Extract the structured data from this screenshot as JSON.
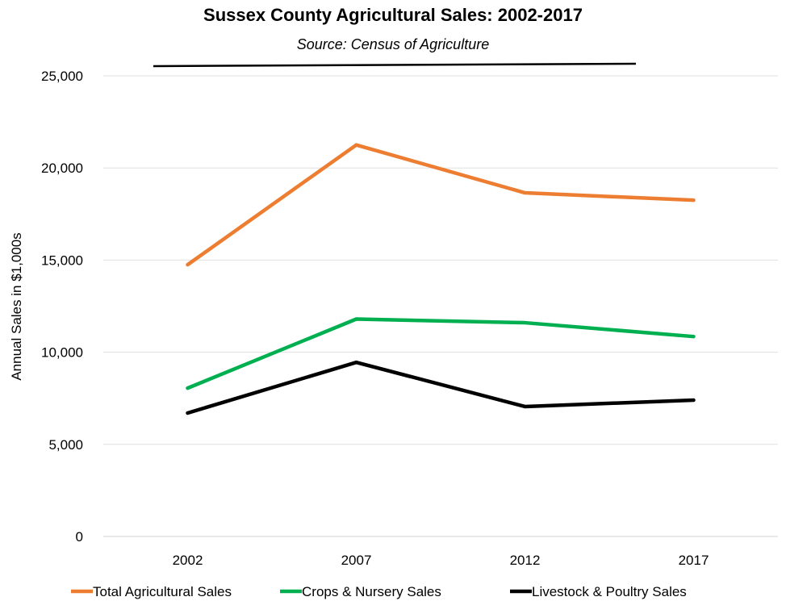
{
  "chart_data": {
    "type": "line",
    "title": "Sussex County Agricultural Sales: 2002-2017",
    "subtitle": "Source: Census of Agriculture",
    "xlabel": "",
    "ylabel": "Annual Sales in $1,000s",
    "categories": [
      "2002",
      "2007",
      "2012",
      "2017"
    ],
    "ylim": [
      0,
      25000
    ],
    "yticks": [
      0,
      5000,
      10000,
      15000,
      20000,
      25000
    ],
    "ytick_labels": [
      "0",
      "5,000",
      "10,000",
      "15,000",
      "20,000",
      "25,000"
    ],
    "grid": "horizontal",
    "legend_position": "bottom",
    "series": [
      {
        "name": "Total Agricultural Sales",
        "color": "#ED7D31",
        "values": [
          14750,
          21250,
          18650,
          18250
        ]
      },
      {
        "name": "Crops & Nursery Sales",
        "color": "#00B050",
        "values": [
          8050,
          11800,
          11600,
          10850
        ]
      },
      {
        "name": "Livestock & Poultry Sales",
        "color": "#000000",
        "values": [
          6700,
          9450,
          7050,
          7400
        ]
      }
    ]
  }
}
